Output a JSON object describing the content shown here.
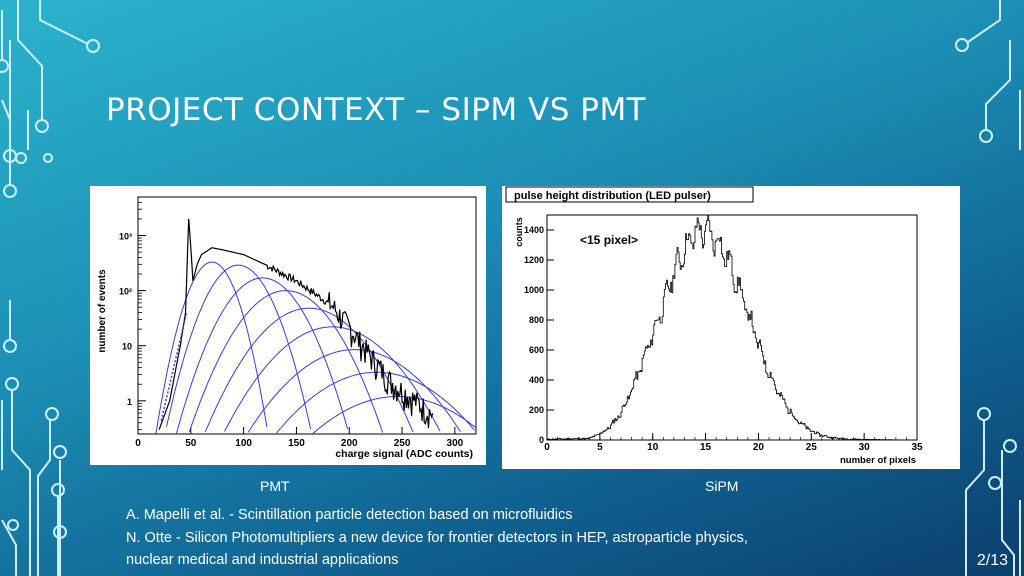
{
  "slide": {
    "title": "PROJECT CONTEXT – SIPM VS PMT",
    "page_number": "2/13",
    "captions": {
      "left": "PMT",
      "right": "SiPM"
    },
    "references": [
      "A. Mapelli et al. - Scintillation particle detection based on microfluidics",
      "N. Otte - Silicon Photomultipliers a new device for frontier detectors in HEP, astroparticle physics,",
      "nuclear medical and industrial applications"
    ],
    "colors": {
      "background_top": "#2bb3cc",
      "background_bottom": "#0c3f6d",
      "circuit": "#cfeff6",
      "fit_curves": "#3b3bcc"
    }
  },
  "chart_data": [
    {
      "type": "line",
      "xlabel": "charge signal (ADC counts)",
      "ylabel": "number of events",
      "log_y": true,
      "xlim": [
        0,
        320
      ],
      "ylim": [
        0.25,
        5000
      ],
      "x_ticks": [
        "0",
        "50",
        "100",
        "150",
        "200",
        "250",
        "300"
      ],
      "y_ticks": [
        "1",
        "10",
        "10²",
        "10³"
      ],
      "series": [
        {
          "x": [
            20,
            30,
            40,
            45,
            48,
            50,
            52,
            56,
            60,
            70,
            80,
            100,
            120,
            150,
            180,
            200,
            220,
            240,
            260,
            280
          ],
          "y": [
            0.3,
            1,
            10,
            40,
            2000,
            600,
            150,
            300,
            450,
            600,
            550,
            450,
            300,
            150,
            60,
            20,
            6,
            2,
            1,
            0.5
          ]
        }
      ],
      "components": [
        {
          "peak_x": 70,
          "peak_y": 330
        },
        {
          "peak_x": 95,
          "peak_y": 290
        },
        {
          "peak_x": 118,
          "peak_y": 170
        },
        {
          "peak_x": 140,
          "peak_y": 100
        },
        {
          "peak_x": 162,
          "peak_y": 48
        },
        {
          "peak_x": 184,
          "peak_y": 22
        },
        {
          "peak_x": 205,
          "peak_y": 8.5
        },
        {
          "peak_x": 226,
          "peak_y": 3.3
        },
        {
          "peak_x": 246,
          "peak_y": 1.2
        }
      ]
    },
    {
      "type": "line",
      "title": "pulse height distribution (LED pulser)",
      "annotation": "<15 pixel>",
      "xlabel": "number of pixels",
      "ylabel": "counts",
      "xlim": [
        0,
        35
      ],
      "ylim": [
        0,
        1500
      ],
      "x_ticks": [
        "0",
        "5",
        "10",
        "15",
        "20",
        "25",
        "30",
        "35"
      ],
      "y_ticks": [
        "0",
        "200",
        "400",
        "600",
        "800",
        "1000",
        "1200",
        "1400"
      ],
      "series": [
        {
          "x": [
            0,
            4,
            5,
            6,
            7,
            8,
            9,
            10,
            11,
            12,
            13,
            14,
            15,
            16,
            17,
            18,
            19,
            20,
            21,
            22,
            23,
            24,
            25,
            26,
            27,
            28,
            30,
            35
          ],
          "y": [
            5,
            10,
            40,
            90,
            180,
            330,
            510,
            700,
            900,
            1120,
            1270,
            1380,
            1400,
            1340,
            1220,
            1050,
            850,
            640,
            450,
            300,
            190,
            110,
            60,
            30,
            15,
            8,
            3,
            0
          ]
        }
      ]
    }
  ]
}
